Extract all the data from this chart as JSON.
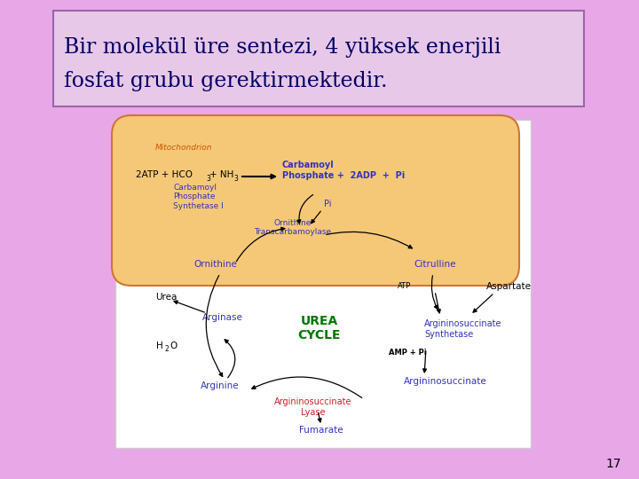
{
  "bg_color": "#e8a8e8",
  "title_text_line1": "Bir molekül üre sentezi, 4 yüksek enerjili",
  "title_text_line2": "fosfat grubu gerektirmektedir.",
  "title_box_color": "#e8c8e8",
  "title_box_border": "#9966aa",
  "title_text_color": "#000066",
  "diagram_bg": "#ffffff",
  "mito_fill": "#f5c878",
  "mito_border": "#cc7733",
  "slide_number": "17",
  "blue_color": "#3333bb",
  "green_color": "#007700",
  "red_color": "#cc2222",
  "black_color": "#000000",
  "orange_label": "#cc5500"
}
